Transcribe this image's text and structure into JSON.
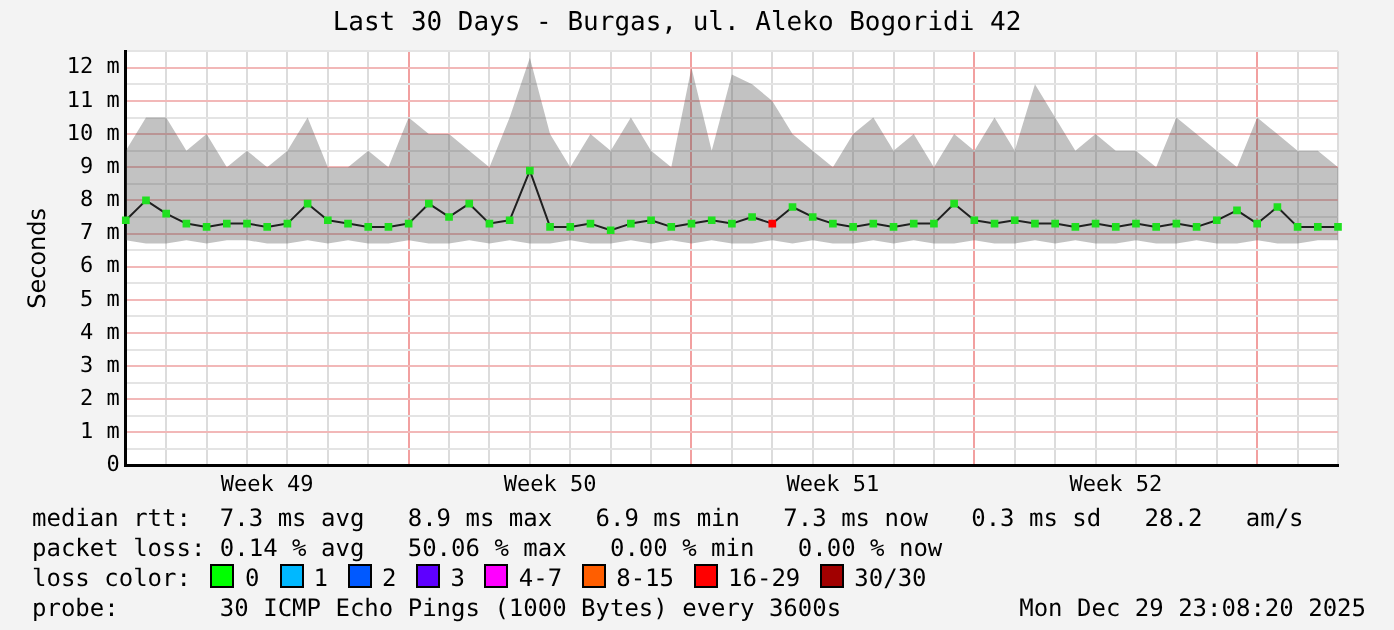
{
  "chart_data": {
    "type": "line",
    "title": "Last 30 Days - Burgas, ul. Aleko Bogoridi 42",
    "ylabel": "Seconds",
    "categories": [
      null,
      null,
      null,
      null,
      null,
      null,
      null,
      "Week 49",
      null,
      null,
      null,
      null,
      null,
      null,
      null,
      null,
      null,
      null,
      null,
      null,
      null,
      "Week 50",
      null,
      null,
      null,
      null,
      null,
      null,
      null,
      null,
      null,
      null,
      null,
      null,
      null,
      "Week 51",
      null,
      null,
      null,
      null,
      null,
      null,
      null,
      null,
      null,
      null,
      null,
      null,
      null,
      "Week 52",
      null,
      null,
      null,
      null,
      null,
      null,
      null,
      null,
      null,
      null,
      null
    ],
    "series": [
      {
        "color": "#20e020",
        "colors": [
          null,
          null,
          null,
          null,
          null,
          null,
          null,
          null,
          null,
          null,
          null,
          null,
          null,
          null,
          null,
          null,
          null,
          null,
          null,
          null,
          null,
          null,
          null,
          null,
          null,
          null,
          null,
          null,
          null,
          null,
          null,
          null,
          "#ff0000",
          null,
          null,
          null,
          null,
          null,
          null,
          null,
          null,
          null,
          null,
          null,
          null,
          null,
          null,
          null,
          null,
          null,
          null,
          null,
          null,
          null,
          null,
          null,
          null,
          null,
          null,
          null,
          null
        ],
        "values": [
          7.4,
          8.0,
          7.6,
          7.3,
          7.2,
          7.3,
          7.3,
          7.2,
          7.3,
          7.9,
          7.4,
          7.3,
          7.2,
          7.2,
          7.3,
          7.9,
          7.5,
          7.9,
          7.3,
          7.4,
          8.9,
          7.2,
          7.2,
          7.3,
          7.1,
          7.3,
          7.4,
          7.2,
          7.3,
          7.4,
          7.3,
          7.5,
          7.3,
          7.8,
          7.5,
          7.3,
          7.2,
          7.3,
          7.2,
          7.3,
          7.3,
          7.9,
          7.4,
          7.3,
          7.4,
          7.3,
          7.3,
          7.2,
          7.3,
          7.2,
          7.3,
          7.2,
          7.3,
          7.2,
          7.4,
          7.7,
          7.3,
          7.8,
          7.2,
          7.2,
          7.2
        ],
        "lower": [
          6.8,
          6.7,
          6.7,
          6.8,
          6.7,
          6.8,
          6.8,
          6.7,
          6.7,
          6.8,
          6.7,
          6.8,
          6.7,
          6.7,
          6.8,
          6.7,
          6.7,
          6.8,
          6.7,
          6.8,
          6.7,
          6.7,
          6.8,
          6.7,
          6.7,
          6.8,
          6.7,
          6.8,
          6.7,
          6.8,
          6.7,
          6.7,
          6.8,
          6.7,
          6.8,
          6.7,
          6.7,
          6.8,
          6.7,
          6.8,
          6.7,
          6.7,
          6.8,
          6.7,
          6.7,
          6.8,
          6.7,
          6.8,
          6.7,
          6.7,
          6.8,
          6.7,
          6.7,
          6.8,
          6.7,
          6.7,
          6.8,
          6.7,
          6.7,
          6.8,
          6.8
        ],
        "upper": [
          9.5,
          10.5,
          10.5,
          9.5,
          10.0,
          9.0,
          9.5,
          9.0,
          9.5,
          10.5,
          9.0,
          9.0,
          9.5,
          9.0,
          10.5,
          10.0,
          10.0,
          9.5,
          9.0,
          10.5,
          12.3,
          10.0,
          9.0,
          10.0,
          9.5,
          10.5,
          9.5,
          9.0,
          12.0,
          9.5,
          11.8,
          11.5,
          11.0,
          10.0,
          9.5,
          9.0,
          10.0,
          10.5,
          9.5,
          10.0,
          9.0,
          10.0,
          9.5,
          10.5,
          9.5,
          11.5,
          10.5,
          9.5,
          10.0,
          9.5,
          9.5,
          9.0,
          10.5,
          10.0,
          9.5,
          9.0,
          10.5,
          10.0,
          9.5,
          9.5,
          9.0
        ]
      }
    ],
    "ylim": [
      0,
      12.5
    ],
    "yticks": [
      {
        "value": 0,
        "label": "0"
      },
      {
        "value": 0.5,
        "label": null
      },
      {
        "value": 1,
        "label": "1 m"
      },
      {
        "value": 1.5,
        "label": null
      },
      {
        "value": 2,
        "label": "2 m"
      },
      {
        "value": 2.5,
        "label": null
      },
      {
        "value": 3,
        "label": "3 m"
      },
      {
        "value": 3.5,
        "label": null
      },
      {
        "value": 4,
        "label": "4 m"
      },
      {
        "value": 4.5,
        "label": null
      },
      {
        "value": 5,
        "label": "5 m"
      },
      {
        "value": 5.5,
        "label": null
      },
      {
        "value": 6,
        "label": "6 m"
      },
      {
        "value": 6.5,
        "label": null
      },
      {
        "value": 7,
        "label": "7 m"
      },
      {
        "value": 7.5,
        "label": null
      },
      {
        "value": 8,
        "label": "8 m"
      },
      {
        "value": 8.5,
        "label": null
      },
      {
        "value": 9,
        "label": "9 m"
      },
      {
        "value": 9.5,
        "label": null
      },
      {
        "value": 10,
        "label": "10 m"
      },
      {
        "value": 10.5,
        "label": null
      },
      {
        "value": 11,
        "label": "11 m"
      },
      {
        "value": 11.5,
        "label": null
      },
      {
        "value": 12,
        "label": "12 m"
      },
      {
        "value": 12.5,
        "label": null
      }
    ],
    "grid": true,
    "marker": "square",
    "legend": false,
    "annotations": [
      "median rtt:  7.3 ms avg   8.9 ms max   6.9 ms min   7.3 ms now   0.3 ms sd   28.2   am/s",
      "packet loss: 0.14 % avg   50.06 % max   0.00 % min   0.00 % now",
      "loss color:",
      "0",
      "1",
      "2",
      "3",
      "4-7",
      "8-15",
      "16-29",
      "30/30",
      "probe:       30 ICMP Echo Pings (1000 Bytes) every 3600s",
      "Mon Dec 29 23:08:20 2025"
    ]
  }
}
